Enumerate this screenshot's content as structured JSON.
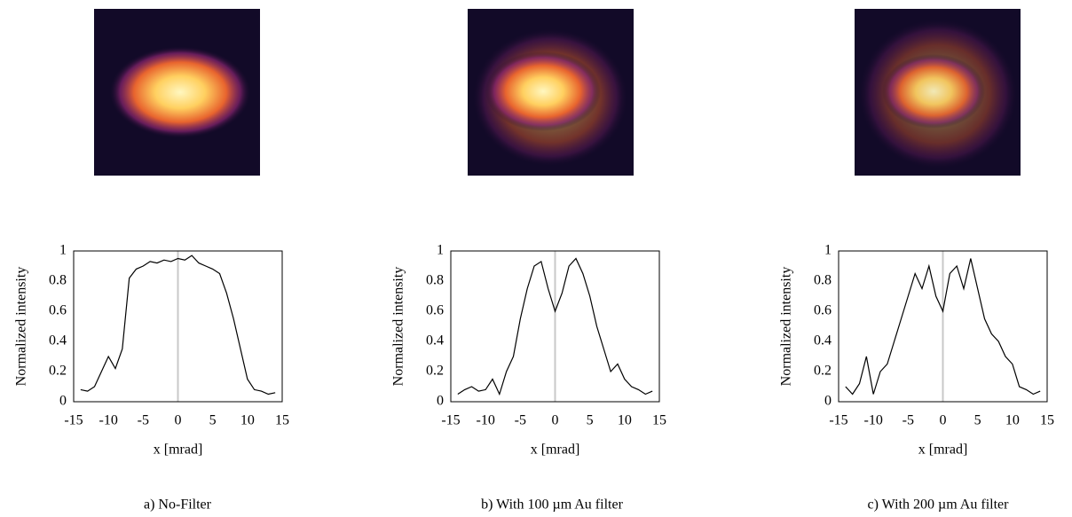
{
  "chart_data": [
    {
      "type": "line",
      "caption": "a) No-Filter",
      "x_label": "x [mrad]",
      "y_label": "Normalized intensity",
      "x": [
        -14,
        -13,
        -12,
        -11,
        -10,
        -9,
        -8,
        -7,
        -6,
        -5,
        -4,
        -3,
        -2,
        -1,
        0,
        1,
        2,
        3,
        4,
        5,
        6,
        7,
        8,
        9,
        10,
        11,
        12,
        13,
        14
      ],
      "series": [
        {
          "color": "#000000",
          "values": [
            0.08,
            0.07,
            0.1,
            0.2,
            0.3,
            0.22,
            0.35,
            0.82,
            0.88,
            0.9,
            0.93,
            0.92,
            0.94,
            0.93,
            0.95,
            0.94,
            0.97,
            0.92,
            0.9,
            0.88,
            0.85,
            0.72,
            0.55,
            0.35,
            0.15,
            0.08,
            0.07,
            0.05,
            0.06
          ]
        }
      ],
      "xlim": [
        -15,
        15
      ],
      "xticks": [
        -15,
        -10,
        -5,
        0,
        5,
        10,
        15
      ],
      "ylim": [
        0,
        1
      ],
      "yticks": [
        0,
        0.2,
        0.4,
        0.6,
        0.8,
        1
      ]
    },
    {
      "type": "line",
      "caption": "b) With 100 µm Au filter",
      "x_label": "x [mrad]",
      "y_label": "Normalized intensity",
      "x": [
        -14,
        -13,
        -12,
        -11,
        -10,
        -9,
        -8,
        -7,
        -6,
        -5,
        -4,
        -3,
        -2,
        -1,
        0,
        1,
        2,
        3,
        4,
        5,
        6,
        7,
        8,
        9,
        10,
        11,
        12,
        13,
        14
      ],
      "series": [
        {
          "color": "#000000",
          "values": [
            0.05,
            0.08,
            0.1,
            0.07,
            0.08,
            0.15,
            0.05,
            0.2,
            0.3,
            0.55,
            0.75,
            0.9,
            0.93,
            0.75,
            0.6,
            0.72,
            0.9,
            0.95,
            0.85,
            0.7,
            0.5,
            0.35,
            0.2,
            0.25,
            0.15,
            0.1,
            0.08,
            0.05,
            0.07
          ]
        }
      ],
      "xlim": [
        -15,
        15
      ],
      "xticks": [
        -15,
        -10,
        -5,
        0,
        5,
        10,
        15
      ],
      "ylim": [
        0,
        1
      ],
      "yticks": [
        0,
        0.2,
        0.4,
        0.6,
        0.8,
        1
      ]
    },
    {
      "type": "line",
      "caption": "c) With 200 µm Au filter",
      "x_label": "x [mrad]",
      "y_label": "Normalized intensity",
      "x": [
        -14,
        -13,
        -12,
        -11,
        -10,
        -9,
        -8,
        -7,
        -6,
        -5,
        -4,
        -3,
        -2,
        -1,
        0,
        1,
        2,
        3,
        4,
        5,
        6,
        7,
        8,
        9,
        10,
        11,
        12,
        13,
        14
      ],
      "series": [
        {
          "color": "#000000",
          "values": [
            0.1,
            0.05,
            0.12,
            0.3,
            0.05,
            0.2,
            0.25,
            0.4,
            0.55,
            0.7,
            0.85,
            0.75,
            0.9,
            0.7,
            0.6,
            0.85,
            0.9,
            0.75,
            0.95,
            0.75,
            0.55,
            0.45,
            0.4,
            0.3,
            0.25,
            0.1,
            0.08,
            0.05,
            0.07
          ]
        }
      ],
      "xlim": [
        -15,
        15
      ],
      "xticks": [
        -15,
        -10,
        -5,
        0,
        5,
        10,
        15
      ],
      "ylim": [
        0,
        1
      ],
      "yticks": [
        0,
        0.2,
        0.4,
        0.6,
        0.8,
        1
      ]
    }
  ]
}
